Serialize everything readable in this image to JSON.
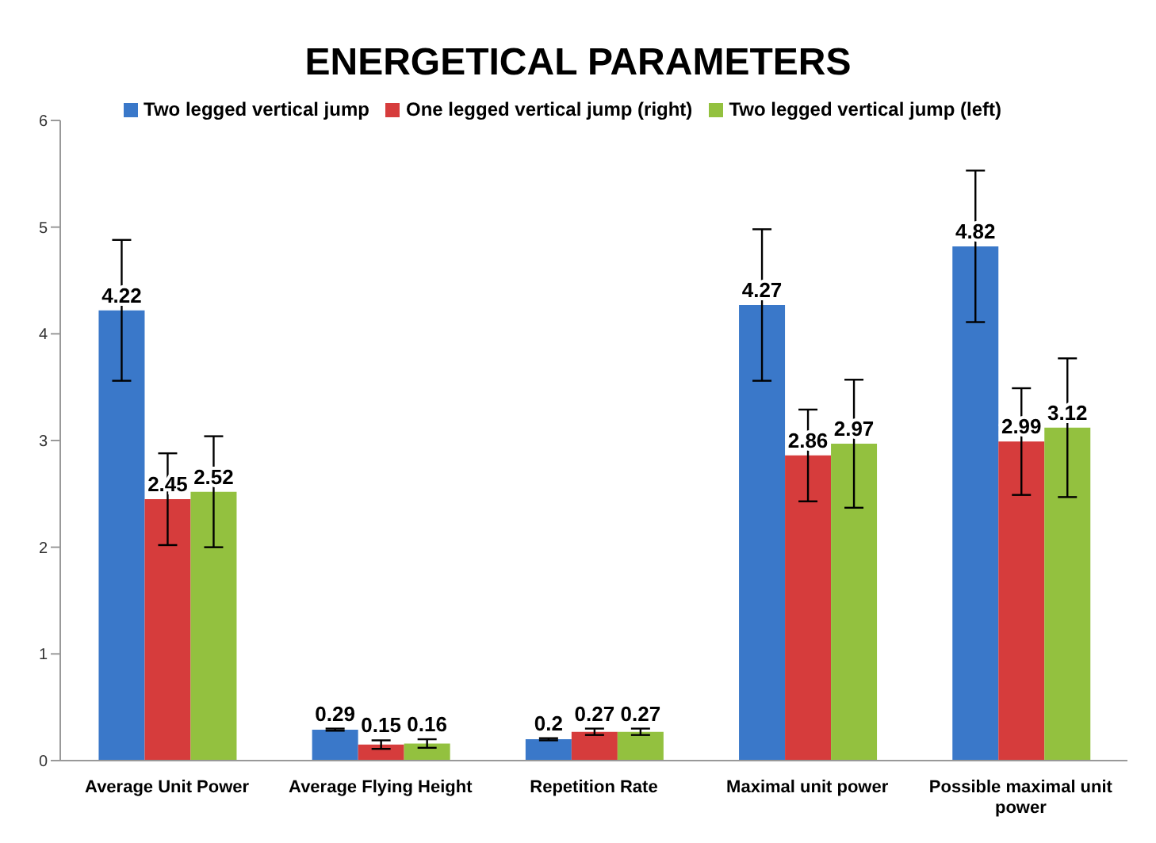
{
  "chart_data": {
    "type": "bar",
    "title": "ENERGETICAL PARAMETERS",
    "categories": [
      "Average Unit Power",
      "Average Flying Height",
      "Repetition Rate",
      "Maximal unit power",
      "Possible maximal unit power"
    ],
    "series": [
      {
        "name": "Two legged vertical jump",
        "color": "#3a78c9",
        "values": [
          4.22,
          0.29,
          0.2,
          4.27,
          4.82
        ],
        "errors": [
          0.66,
          0.01,
          0.01,
          0.71,
          0.71
        ]
      },
      {
        "name": "One legged vertical jump (right)",
        "color": "#d63c3c",
        "values": [
          2.45,
          0.15,
          0.27,
          2.86,
          2.99
        ],
        "errors": [
          0.43,
          0.04,
          0.03,
          0.43,
          0.5
        ]
      },
      {
        "name": "Two legged vertical jump (left)",
        "color": "#93c13f",
        "values": [
          2.52,
          0.16,
          0.27,
          2.97,
          3.12
        ],
        "errors": [
          0.52,
          0.04,
          0.03,
          0.6,
          0.65
        ]
      }
    ],
    "ylim": [
      0,
      6
    ],
    "yticks": [
      0,
      1,
      2,
      3,
      4,
      5,
      6
    ],
    "grid": false,
    "legend": "top",
    "data_labels": true
  }
}
